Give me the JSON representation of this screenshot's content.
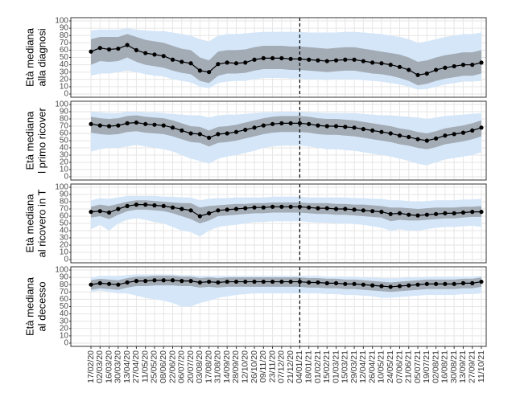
{
  "chart_data": {
    "type": "line",
    "categories": [
      "17/02/20",
      "02/03/20",
      "16/03/20",
      "30/03/20",
      "13/04/20",
      "27/04/20",
      "11/05/20",
      "25/05/20",
      "08/06/20",
      "22/06/20",
      "06/07/20",
      "20/07/20",
      "03/08/20",
      "17/08/20",
      "31/08/20",
      "14/09/20",
      "28/09/20",
      "12/10/20",
      "26/10/20",
      "09/11/20",
      "23/11/20",
      "07/12/20",
      "21/12/20",
      "04/01/21",
      "18/01/21",
      "01/02/21",
      "15/02/21",
      "01/03/21",
      "15/03/21",
      "29/03/21",
      "12/04/21",
      "26/04/21",
      "10/05/21",
      "24/05/21",
      "07/06/21",
      "21/06/21",
      "05/07/21",
      "19/07/21",
      "02/08/21",
      "16/08/21",
      "30/08/21",
      "13/09/21",
      "27/09/21",
      "11/10/21"
    ],
    "ylim": [
      0,
      100
    ],
    "yticks": [
      0,
      10,
      20,
      30,
      40,
      50,
      60,
      70,
      80,
      90,
      100
    ],
    "grid": true,
    "vline": "04/01/21",
    "line_color": "#000000",
    "inner_color": "#a3abb5",
    "outer_color": "#d4e6f8",
    "panels": [
      {
        "ylabel": [
          "Età mediana",
          "alla diagnosi"
        ],
        "median": [
          58,
          63,
          61,
          62,
          67,
          60,
          56,
          54,
          52,
          47,
          44,
          42,
          32,
          30,
          41,
          43,
          42,
          43,
          47,
          49,
          49,
          49,
          48,
          48,
          47,
          46,
          45,
          46,
          47,
          47,
          45,
          43,
          42,
          40,
          37,
          33,
          26,
          28,
          33,
          36,
          38,
          40,
          40,
          43
        ],
        "inner_low": [
          40,
          45,
          44,
          45,
          50,
          44,
          40,
          38,
          36,
          32,
          29,
          27,
          18,
          15,
          25,
          28,
          28,
          29,
          32,
          34,
          34,
          34,
          33,
          33,
          32,
          31,
          30,
          31,
          32,
          32,
          30,
          28,
          27,
          25,
          22,
          18,
          12,
          14,
          18,
          21,
          23,
          25,
          25,
          28
        ],
        "inner_high": [
          75,
          78,
          78,
          78,
          82,
          78,
          74,
          72,
          70,
          66,
          62,
          60,
          50,
          46,
          58,
          60,
          60,
          61,
          64,
          66,
          66,
          66,
          65,
          65,
          64,
          63,
          62,
          63,
          64,
          64,
          62,
          60,
          58,
          56,
          54,
          50,
          44,
          46,
          50,
          53,
          55,
          57,
          57,
          60
        ],
        "outer_low": [
          25,
          28,
          28,
          30,
          32,
          30,
          27,
          25,
          24,
          20,
          18,
          16,
          10,
          8,
          15,
          17,
          18,
          18,
          20,
          22,
          22,
          22,
          21,
          21,
          20,
          20,
          19,
          20,
          20,
          20,
          19,
          18,
          17,
          15,
          13,
          10,
          6,
          7,
          10,
          13,
          15,
          17,
          17,
          18
        ],
        "outer_high": [
          87,
          88,
          88,
          88,
          90,
          88,
          87,
          86,
          86,
          84,
          82,
          80,
          75,
          72,
          80,
          82,
          82,
          83,
          84,
          85,
          85,
          85,
          85,
          85,
          84,
          84,
          84,
          84,
          85,
          85,
          84,
          83,
          82,
          80,
          78,
          75,
          70,
          72,
          75,
          78,
          80,
          82,
          82,
          84
        ]
      },
      {
        "ylabel": [
          "Età mediana",
          "l primo ricover"
        ],
        "median": [
          73,
          71,
          70,
          71,
          74,
          75,
          73,
          72,
          71,
          68,
          64,
          60,
          59,
          54,
          59,
          60,
          62,
          65,
          68,
          71,
          73,
          74,
          74,
          74,
          73,
          71,
          70,
          70,
          69,
          68,
          66,
          64,
          62,
          60,
          57,
          55,
          52,
          50,
          53,
          57,
          59,
          61,
          64,
          68
        ],
        "inner_low": [
          61,
          59,
          58,
          59,
          62,
          63,
          61,
          60,
          59,
          56,
          52,
          48,
          47,
          42,
          47,
          48,
          50,
          53,
          56,
          59,
          61,
          62,
          62,
          62,
          61,
          59,
          58,
          58,
          57,
          56,
          54,
          52,
          50,
          48,
          45,
          43,
          40,
          38,
          41,
          45,
          47,
          49,
          52,
          56
        ],
        "inner_high": [
          83,
          81,
          80,
          81,
          84,
          85,
          83,
          82,
          81,
          78,
          74,
          70,
          69,
          64,
          69,
          70,
          72,
          75,
          78,
          81,
          83,
          84,
          84,
          84,
          83,
          81,
          80,
          80,
          79,
          78,
          76,
          74,
          72,
          70,
          67,
          65,
          62,
          60,
          63,
          67,
          69,
          71,
          74,
          78
        ],
        "outer_low": [
          35,
          38,
          40,
          40,
          42,
          44,
          42,
          40,
          38,
          35,
          30,
          25,
          22,
          18,
          25,
          28,
          30,
          33,
          36,
          40,
          42,
          43,
          43,
          43,
          42,
          40,
          38,
          38,
          37,
          36,
          34,
          32,
          30,
          28,
          25,
          22,
          18,
          16,
          20,
          24,
          26,
          28,
          30,
          34
        ],
        "outer_high": [
          90,
          89,
          88,
          88,
          90,
          90,
          89,
          89,
          88,
          87,
          86,
          85,
          85,
          82,
          85,
          86,
          86,
          87,
          88,
          89,
          89,
          90,
          90,
          90,
          89,
          89,
          88,
          88,
          88,
          88,
          87,
          86,
          85,
          85,
          84,
          83,
          82,
          80,
          82,
          84,
          85,
          86,
          87,
          88
        ]
      },
      {
        "ylabel": [
          "Età mediana",
          "al ricovero in T"
        ],
        "median": [
          66,
          67,
          65,
          70,
          74,
          76,
          76,
          75,
          74,
          72,
          70,
          68,
          60,
          64,
          68,
          69,
          70,
          71,
          72,
          72,
          73,
          73,
          73,
          73,
          72,
          71,
          71,
          70,
          70,
          69,
          68,
          67,
          66,
          63,
          64,
          62,
          61,
          62,
          63,
          64,
          64,
          65,
          66,
          66
        ],
        "inner_low": [
          58,
          60,
          56,
          62,
          67,
          69,
          69,
          68,
          67,
          64,
          60,
          56,
          50,
          54,
          60,
          61,
          62,
          63,
          64,
          64,
          65,
          65,
          65,
          65,
          64,
          63,
          63,
          62,
          62,
          61,
          60,
          59,
          58,
          53,
          55,
          54,
          54,
          55,
          56,
          57,
          57,
          58,
          59,
          59
        ],
        "inner_high": [
          73,
          76,
          74,
          77,
          80,
          82,
          82,
          81,
          80,
          79,
          78,
          78,
          72,
          74,
          75,
          76,
          77,
          77,
          78,
          78,
          79,
          79,
          79,
          79,
          78,
          78,
          78,
          77,
          77,
          76,
          76,
          75,
          74,
          72,
          72,
          71,
          70,
          71,
          72,
          72,
          72,
          73,
          73,
          74
        ],
        "outer_low": [
          42,
          48,
          40,
          50,
          55,
          57,
          55,
          52,
          50,
          45,
          40,
          38,
          32,
          40,
          45,
          47,
          48,
          50,
          52,
          52,
          53,
          53,
          53,
          53,
          52,
          51,
          51,
          50,
          50,
          49,
          48,
          46,
          44,
          40,
          42,
          40,
          40,
          42,
          44,
          45,
          45,
          46,
          47,
          45
        ],
        "outer_high": [
          82,
          85,
          84,
          86,
          88,
          88,
          88,
          88,
          87,
          87,
          86,
          86,
          82,
          84,
          85,
          85,
          86,
          86,
          86,
          86,
          87,
          87,
          87,
          87,
          86,
          86,
          86,
          86,
          86,
          85,
          85,
          84,
          84,
          82,
          82,
          81,
          80,
          81,
          82,
          82,
          82,
          83,
          83,
          84
        ]
      },
      {
        "ylabel": [
          "Età mediana",
          "al decesso"
        ],
        "median": [
          80,
          82,
          81,
          80,
          83,
          85,
          85,
          86,
          86,
          86,
          85,
          85,
          83,
          84,
          83,
          84,
          84,
          84,
          84,
          84,
          84,
          84,
          84,
          84,
          83,
          83,
          82,
          82,
          81,
          81,
          80,
          79,
          78,
          77,
          78,
          79,
          80,
          81,
          81,
          81,
          81,
          82,
          82,
          84
        ],
        "inner_low": [
          73,
          75,
          74,
          73,
          76,
          78,
          78,
          79,
          79,
          79,
          78,
          78,
          76,
          77,
          76,
          77,
          77,
          77,
          77,
          77,
          77,
          77,
          77,
          77,
          76,
          76,
          75,
          75,
          74,
          74,
          73,
          72,
          71,
          70,
          71,
          72,
          73,
          74,
          74,
          74,
          74,
          75,
          75,
          77
        ],
        "inner_high": [
          86,
          88,
          87,
          86,
          89,
          91,
          91,
          92,
          92,
          92,
          91,
          91,
          89,
          90,
          89,
          90,
          90,
          90,
          90,
          90,
          90,
          90,
          90,
          90,
          89,
          89,
          88,
          88,
          87,
          87,
          86,
          85,
          84,
          83,
          84,
          85,
          86,
          87,
          87,
          87,
          87,
          88,
          88,
          90
        ],
        "outer_low": [
          70,
          72,
          70,
          68,
          68,
          65,
          62,
          60,
          58,
          55,
          50,
          50,
          55,
          58,
          62,
          64,
          66,
          67,
          68,
          68,
          68,
          68,
          68,
          68,
          68,
          68,
          67,
          67,
          66,
          66,
          65,
          64,
          62,
          62,
          63,
          64,
          65,
          66,
          66,
          66,
          66,
          67,
          67,
          68
        ],
        "outer_high": [
          90,
          92,
          92,
          92,
          93,
          94,
          94,
          94,
          94,
          94,
          93,
          93,
          92,
          92,
          92,
          92,
          92,
          92,
          92,
          92,
          92,
          92,
          92,
          92,
          92,
          92,
          91,
          91,
          91,
          91,
          90,
          90,
          89,
          89,
          89,
          90,
          90,
          91,
          91,
          91,
          91,
          91,
          91,
          92
        ]
      }
    ]
  }
}
